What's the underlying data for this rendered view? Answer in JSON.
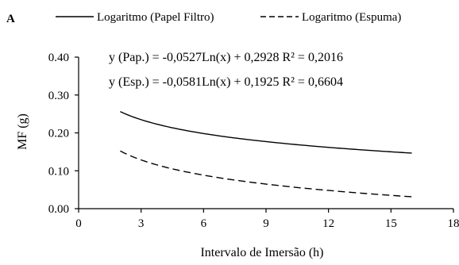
{
  "panel_label": "A",
  "chart_data": {
    "type": "line",
    "xlabel": "Intervalo de Imersão  (h)",
    "ylabel": "MF (g)",
    "xlim": [
      0,
      18
    ],
    "ylim": [
      0,
      0.4
    ],
    "x_ticks": [
      0,
      3,
      6,
      9,
      12,
      15,
      18
    ],
    "y_ticks": [
      0,
      0.1,
      0.2,
      0.3,
      0.4
    ],
    "x_tick_labels": [
      "0",
      "3",
      "6",
      "9",
      "12",
      "15",
      "18"
    ],
    "y_tick_labels": [
      "0.00",
      "0.10",
      "0.20",
      "0.30",
      "0.40"
    ],
    "grid": false,
    "legend_position": "top",
    "series": [
      {
        "name": "Logaritmo (Papel Filtro)",
        "line_style": "solid",
        "model": "log",
        "coef_a": -0.0527,
        "coef_b": 0.2928,
        "x_range": [
          2,
          16
        ],
        "equation_label": "y (Pap.) = -0,0527Ln(x) + 0,2928 R² = 0,2016"
      },
      {
        "name": "Logaritmo (Espuma)",
        "line_style": "dashed",
        "model": "log",
        "coef_a": -0.0581,
        "coef_b": 0.1925,
        "x_range": [
          2,
          16
        ],
        "equation_label": "y (Esp.) = -0,0581Ln(x) + 0,1925 R² = 0,6604"
      }
    ]
  }
}
